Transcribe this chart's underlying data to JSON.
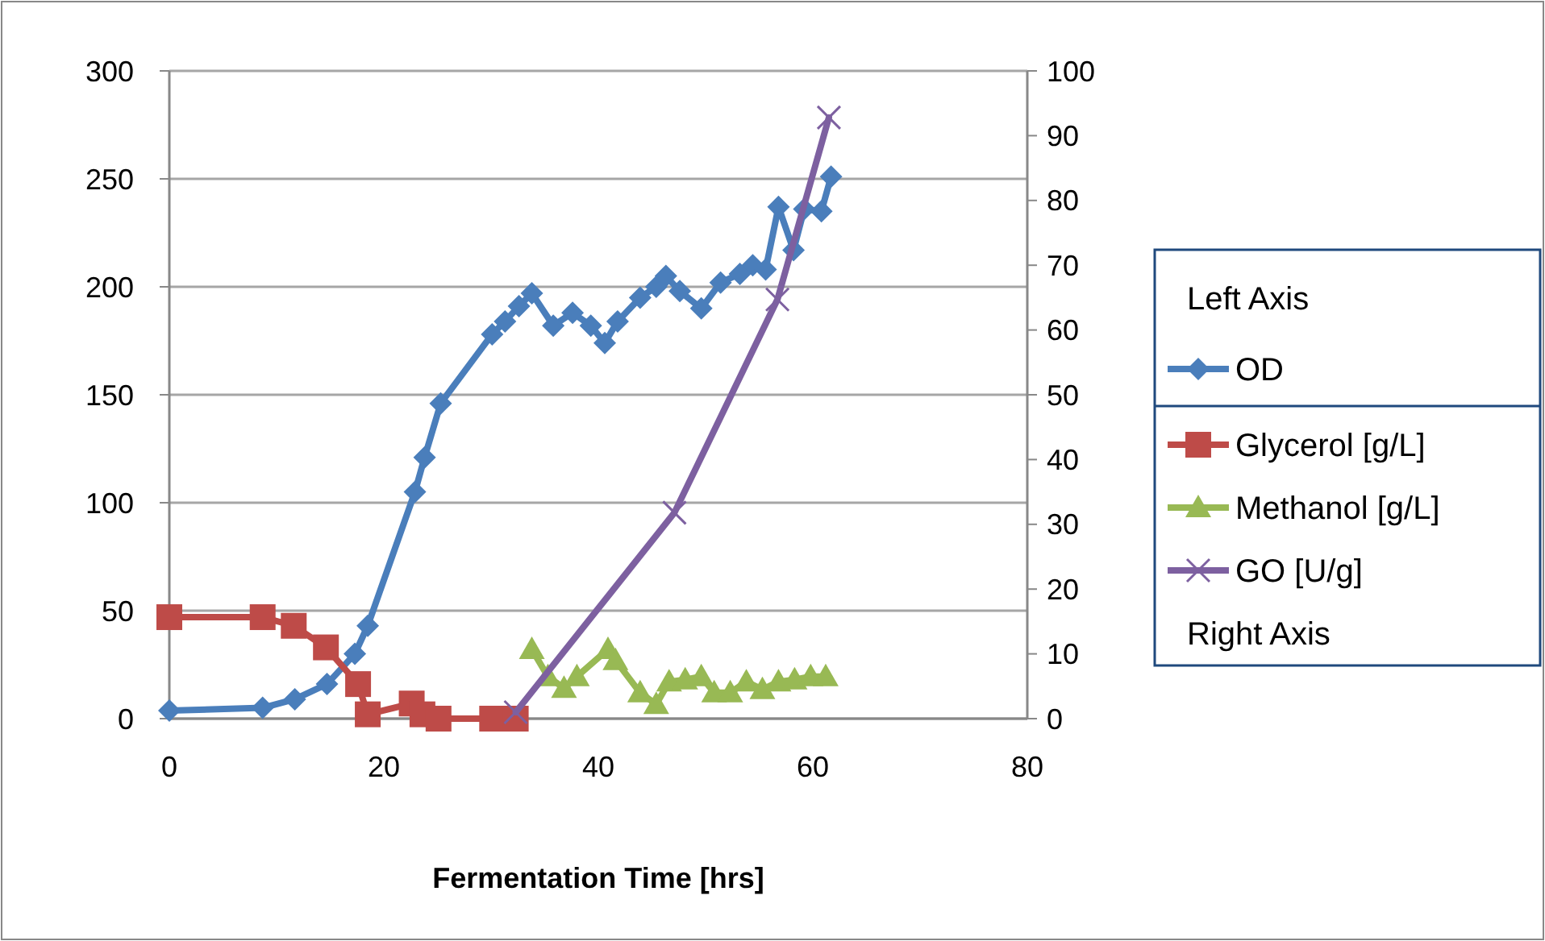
{
  "chart_data": {
    "type": "line",
    "xlabel": "Fermentation Time [hrs]",
    "legend_title": "Left Axis",
    "annotations": [
      "Right Axis"
    ],
    "xlim": [
      0,
      80
    ],
    "xticks": [
      0,
      20,
      40,
      60,
      80
    ],
    "ylim": [
      0,
      300
    ],
    "yticks": [
      0,
      50,
      100,
      150,
      200,
      250,
      300
    ],
    "y2lim": [
      0,
      100
    ],
    "y2ticks": [
      0,
      10,
      20,
      30,
      40,
      50,
      60,
      70,
      80,
      90,
      100
    ],
    "grid": "y",
    "legend": "right",
    "series": [
      {
        "name": "OD",
        "color": "#4a7ebb",
        "marker": "diamond",
        "x": [
          0,
          8.7,
          11.7,
          14.7,
          17.3,
          18.5,
          22.9,
          23.8,
          25.3,
          30.1,
          31.3,
          32.6,
          33.8,
          35.8,
          37.6,
          39.3,
          40.6,
          41.8,
          43.9,
          45.4,
          46.3,
          47.6,
          49.6,
          51.4,
          53.2,
          54.4,
          55.6,
          56.8,
          58.2,
          59.2,
          60.8,
          61.7
        ],
        "values": [
          3.7,
          5,
          9,
          16,
          30,
          43,
          105,
          121,
          146,
          178,
          184,
          191,
          197,
          182,
          188,
          182,
          174,
          184,
          195,
          200,
          205,
          198,
          190,
          202,
          206,
          210,
          208,
          237,
          217,
          236,
          235,
          251
        ]
      },
      {
        "name": "Glycerol [g/L]",
        "color": "#be4b48",
        "marker": "square",
        "x": [
          0,
          8.7,
          11.6,
          14.6,
          17.6,
          18.5,
          22.6,
          23.6,
          25.1,
          30.1,
          32.3
        ],
        "values": [
          47,
          47,
          43,
          33,
          16,
          2,
          7,
          2,
          0,
          0,
          0
        ]
      },
      {
        "name": "Methanol [g/L]",
        "color": "#98b954",
        "marker": "triangle",
        "axis": "y2",
        "x": [
          33.8,
          35.3,
          36.8,
          38,
          40.9,
          41.6,
          43.9,
          45.4,
          46.6,
          48.1,
          49.6,
          50.8,
          52.3,
          53.8,
          55.3,
          56.8,
          58.3,
          59.8,
          61.2
        ],
        "values": [
          10.7,
          6.5,
          4.7,
          6.5,
          10.7,
          9,
          4,
          2.2,
          5.7,
          6,
          6.5,
          4,
          4,
          5.7,
          4.5,
          5.7,
          6,
          6.5,
          6.5
        ]
      },
      {
        "name": "GO [U/g]",
        "color": "#7d60a0",
        "marker": "cross",
        "axis": "y2",
        "x": [
          32.3,
          47.1,
          56.7,
          61.5
        ],
        "values": [
          1,
          31.8,
          64.7,
          92.8
        ]
      }
    ]
  }
}
